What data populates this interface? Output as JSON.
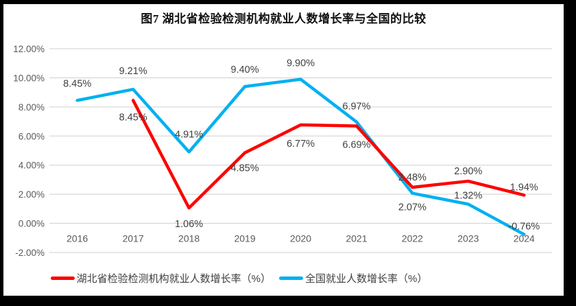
{
  "chart_data": {
    "type": "line",
    "title": "图7 湖北省检验检测机构就业人数增长率与全国的比较",
    "categories": [
      "2016",
      "2017",
      "2018",
      "2019",
      "2020",
      "2021",
      "2022",
      "2023",
      "2024"
    ],
    "y_axis": {
      "min": -2,
      "max": 12,
      "step": 2,
      "tick_labels": [
        "12.00%",
        "10.00%",
        "8.00%",
        "6.00%",
        "4.00%",
        "2.00%",
        "0.00%",
        "-2.00%"
      ]
    },
    "grid": "horizontal",
    "legend_position": "bottom",
    "series": [
      {
        "id": "hubei",
        "name": "湖北省检验检测机构就业人数增长率（%）",
        "color": "#FF0000",
        "values": [
          null,
          8.45,
          1.06,
          4.85,
          6.77,
          6.69,
          2.48,
          2.9,
          1.94
        ],
        "point_labels": [
          "",
          "8.45%",
          "1.06%",
          "4.85%",
          "6.77%",
          "6.69%",
          "2.48%",
          "2.90%",
          "1.94%"
        ],
        "label_offsets_y": [
          0,
          29,
          28,
          27,
          32,
          32,
          -10,
          -10,
          -7
        ]
      },
      {
        "id": "national",
        "name": "全国就业人数增长率（%）",
        "color": "#00B0F0",
        "values": [
          8.45,
          9.21,
          4.91,
          9.4,
          9.9,
          6.97,
          2.07,
          1.32,
          -0.76
        ],
        "point_labels": [
          "8.45%",
          "9.21%",
          "4.91%",
          "9.40%",
          "9.90%",
          "6.97%",
          "2.07%",
          "1.32%",
          "-0.76%"
        ],
        "label_offsets_y": [
          -20,
          -22,
          -21,
          -20,
          -19,
          -18,
          25,
          -8,
          -7
        ]
      }
    ]
  },
  "colors": {
    "frame": "#000000",
    "background": "#FFFFFF",
    "gridline": "#D9D9D9",
    "axis_text": "#595959",
    "label_text": "#404040"
  }
}
